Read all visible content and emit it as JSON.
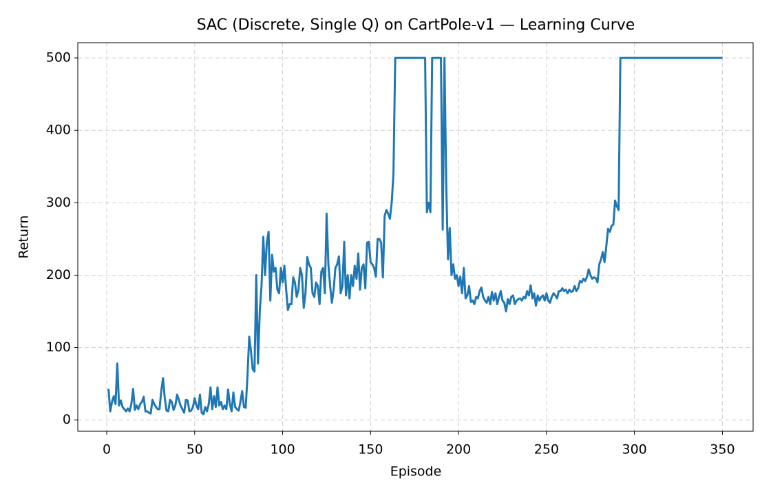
{
  "chart_data": {
    "type": "line",
    "title": "SAC (Discrete, Single Q) on CartPole-v1 — Learning Curve",
    "x_label": "Episode",
    "y_label": "Return",
    "color": "#1f77b4",
    "grid": true,
    "xlim": [
      -16.45,
      367.45
    ],
    "ylim": [
      -15.5,
      521
    ],
    "xticks": [
      0,
      50,
      100,
      150,
      200,
      250,
      300,
      350
    ],
    "yticks": [
      0,
      100,
      200,
      300,
      400,
      500
    ],
    "x": [
      1,
      2,
      3,
      4,
      5,
      6,
      7,
      8,
      9,
      10,
      11,
      12,
      13,
      14,
      15,
      16,
      17,
      18,
      19,
      20,
      21,
      22,
      23,
      24,
      25,
      26,
      27,
      28,
      29,
      30,
      31,
      32,
      33,
      34,
      35,
      36,
      37,
      38,
      39,
      40,
      41,
      42,
      43,
      44,
      45,
      46,
      47,
      48,
      49,
      50,
      51,
      52,
      53,
      54,
      55,
      56,
      57,
      58,
      59,
      60,
      61,
      62,
      63,
      64,
      65,
      66,
      67,
      68,
      69,
      70,
      71,
      72,
      73,
      74,
      75,
      76,
      77,
      78,
      79,
      80,
      81,
      82,
      83,
      84,
      85,
      86,
      87,
      88,
      89,
      90,
      91,
      92,
      93,
      94,
      95,
      96,
      97,
      98,
      99,
      100,
      101,
      102,
      103,
      104,
      105,
      106,
      107,
      108,
      109,
      110,
      111,
      112,
      113,
      114,
      115,
      116,
      117,
      118,
      119,
      120,
      121,
      122,
      123,
      124,
      125,
      126,
      127,
      128,
      129,
      130,
      131,
      132,
      133,
      134,
      135,
      136,
      137,
      138,
      139,
      140,
      141,
      142,
      143,
      144,
      145,
      146,
      147,
      148,
      149,
      150,
      151,
      152,
      153,
      154,
      155,
      156,
      157,
      158,
      159,
      160,
      161,
      162,
      163,
      164,
      165,
      166,
      167,
      168,
      169,
      170,
      171,
      172,
      173,
      174,
      175,
      176,
      177,
      178,
      179,
      180,
      181,
      182,
      183,
      184,
      185,
      186,
      187,
      188,
      189,
      190,
      191,
      192,
      193,
      194,
      195,
      196,
      197,
      198,
      199,
      200,
      201,
      202,
      203,
      204,
      205,
      206,
      207,
      208,
      209,
      210,
      211,
      212,
      213,
      214,
      215,
      216,
      217,
      218,
      219,
      220,
      221,
      222,
      223,
      224,
      225,
      226,
      227,
      228,
      229,
      230,
      231,
      232,
      233,
      234,
      235,
      236,
      237,
      238,
      239,
      240,
      241,
      242,
      243,
      244,
      245,
      246,
      247,
      248,
      249,
      250,
      251,
      252,
      253,
      254,
      255,
      256,
      257,
      258,
      259,
      260,
      261,
      262,
      263,
      264,
      265,
      266,
      267,
      268,
      269,
      270,
      271,
      272,
      273,
      274,
      275,
      276,
      277,
      278,
      279,
      280,
      281,
      282,
      283,
      284,
      285,
      286,
      287,
      288,
      289,
      290,
      291,
      292,
      293,
      294,
      295,
      296,
      297,
      298,
      299,
      300,
      301,
      302,
      303,
      304,
      305,
      306,
      307,
      308,
      309,
      310,
      311,
      312,
      313,
      314,
      315,
      316,
      317,
      318,
      319,
      320,
      321,
      322,
      323,
      324,
      325,
      326,
      327,
      328,
      329,
      330,
      331,
      332,
      333,
      334,
      335,
      336,
      337,
      338,
      339,
      340,
      341,
      342,
      343,
      344,
      345,
      346,
      347,
      348,
      349,
      350
    ],
    "values": [
      43,
      12,
      25,
      33,
      22,
      78,
      20,
      27,
      18,
      15,
      12,
      16,
      12,
      22,
      43,
      14,
      20,
      15,
      22,
      25,
      32,
      12,
      12,
      10,
      9,
      28,
      22,
      18,
      15,
      15,
      40,
      58,
      30,
      13,
      12,
      28,
      25,
      14,
      20,
      35,
      28,
      20,
      15,
      10,
      28,
      27,
      12,
      13,
      18,
      30,
      20,
      15,
      35,
      10,
      8,
      18,
      12,
      22,
      45,
      15,
      33,
      18,
      45,
      20,
      25,
      15,
      20,
      15,
      42,
      22,
      12,
      38,
      18,
      15,
      13,
      25,
      40,
      18,
      17,
      60,
      115,
      95,
      70,
      67,
      200,
      78,
      150,
      185,
      253,
      200,
      245,
      260,
      165,
      228,
      205,
      210,
      180,
      175,
      210,
      190,
      213,
      180,
      152,
      160,
      160,
      197,
      190,
      170,
      180,
      210,
      200,
      155,
      175,
      225,
      215,
      210,
      175,
      170,
      190,
      185,
      160,
      205,
      210,
      175,
      285,
      215,
      185,
      162,
      180,
      210,
      215,
      226,
      175,
      185,
      246,
      172,
      200,
      168,
      200,
      185,
      213,
      195,
      230,
      180,
      210,
      215,
      182,
      245,
      246,
      218,
      215,
      210,
      198,
      250,
      250,
      245,
      197,
      282,
      290,
      285,
      278,
      300,
      340,
      500,
      500,
      500,
      500,
      500,
      500,
      500,
      500,
      500,
      500,
      500,
      500,
      500,
      500,
      500,
      500,
      500,
      500,
      287,
      300,
      287,
      500,
      500,
      500,
      500,
      500,
      500,
      263,
      500,
      325,
      222,
      265,
      200,
      215,
      195,
      200,
      185,
      198,
      175,
      210,
      168,
      172,
      185,
      163,
      165,
      160,
      170,
      168,
      178,
      183,
      170,
      165,
      162,
      170,
      160,
      177,
      165,
      175,
      160,
      170,
      178,
      165,
      162,
      150,
      167,
      160,
      170,
      172,
      160,
      165,
      167,
      168,
      165,
      170,
      168,
      178,
      172,
      186,
      168,
      175,
      158,
      172,
      165,
      170,
      172,
      165,
      175,
      165,
      162,
      170,
      175,
      172,
      168,
      178,
      178,
      182,
      178,
      180,
      175,
      180,
      177,
      178,
      185,
      178,
      182,
      192,
      190,
      195,
      192,
      198,
      208,
      200,
      195,
      197,
      196,
      190,
      215,
      222,
      232,
      218,
      240,
      264,
      260,
      268,
      270,
      303,
      295,
      290,
      500,
      500,
      500,
      500,
      500,
      500,
      500,
      500,
      500,
      500,
      500,
      500,
      500,
      500,
      500,
      500,
      500,
      500,
      500,
      500,
      500,
      500,
      500,
      500,
      500,
      500,
      500,
      500,
      500,
      500,
      500,
      500,
      500,
      500,
      500,
      500,
      500,
      500,
      500,
      500,
      500,
      500,
      500,
      500,
      500,
      500,
      500,
      500,
      500,
      500,
      500,
      500,
      500,
      500,
      500,
      500,
      500,
      500,
      500
    ]
  }
}
